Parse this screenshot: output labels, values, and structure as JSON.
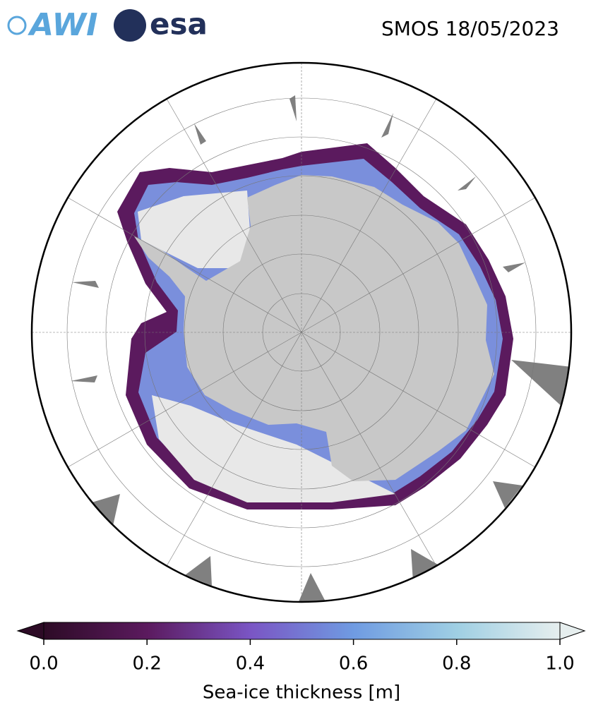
{
  "header": {
    "logos": [
      "AWI",
      "esa"
    ],
    "title": "SMOS 18/05/2023"
  },
  "colorbar": {
    "label": "Sea-ice thickness [m]",
    "lim": [
      0,
      1
    ],
    "ticks": [
      {
        "value": 0,
        "label": "0.0"
      },
      {
        "value": 0.2,
        "label": "0.2"
      },
      {
        "value": 0.4,
        "label": "0.4"
      },
      {
        "value": 0.6,
        "label": "0.6"
      },
      {
        "value": 0.8,
        "label": "0.8"
      },
      {
        "value": 1,
        "label": "1.0"
      }
    ],
    "colors": [
      "#2d0b26",
      "#5b1a5e",
      "#7a55c4",
      "#6f9be2",
      "#9fcfe3",
      "#e6eeee"
    ]
  }
}
